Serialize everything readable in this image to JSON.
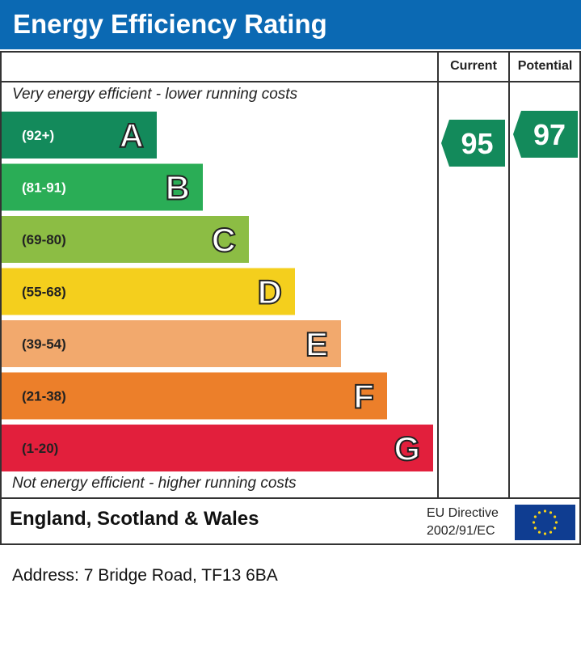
{
  "header": {
    "title": "Energy Efficiency Rating"
  },
  "columns": {
    "current": "Current",
    "potential": "Potential"
  },
  "captions": {
    "top": "Very energy efficient - lower running costs",
    "bottom": "Not energy efficient - higher running costs"
  },
  "footer": {
    "country": "England, Scotland & Wales",
    "eu_line1": "EU Directive",
    "eu_line2": "2002/91/EC"
  },
  "address": "Address: 7 Bridge Road, TF13 6BA",
  "colors": {
    "header": "#0b69b3",
    "flag": "#0f3d91",
    "star": "#f7d317"
  },
  "chart_data": {
    "type": "bar",
    "title": "Energy Efficiency Rating",
    "categories": [
      "A",
      "B",
      "C",
      "D",
      "E",
      "F",
      "G"
    ],
    "ranges": [
      "(92+)",
      "(81-91)",
      "(69-80)",
      "(55-68)",
      "(39-54)",
      "(21-38)",
      "(1-20)"
    ],
    "colors": [
      "#138a5b",
      "#2aad56",
      "#8cbd44",
      "#f4cf1d",
      "#f2a96d",
      "#ec7f2a",
      "#e21f3c"
    ],
    "current": {
      "value": 95,
      "band": "A",
      "color": "#138a5b"
    },
    "potential": {
      "value": 97,
      "band": "A",
      "color": "#138a5b"
    }
  }
}
